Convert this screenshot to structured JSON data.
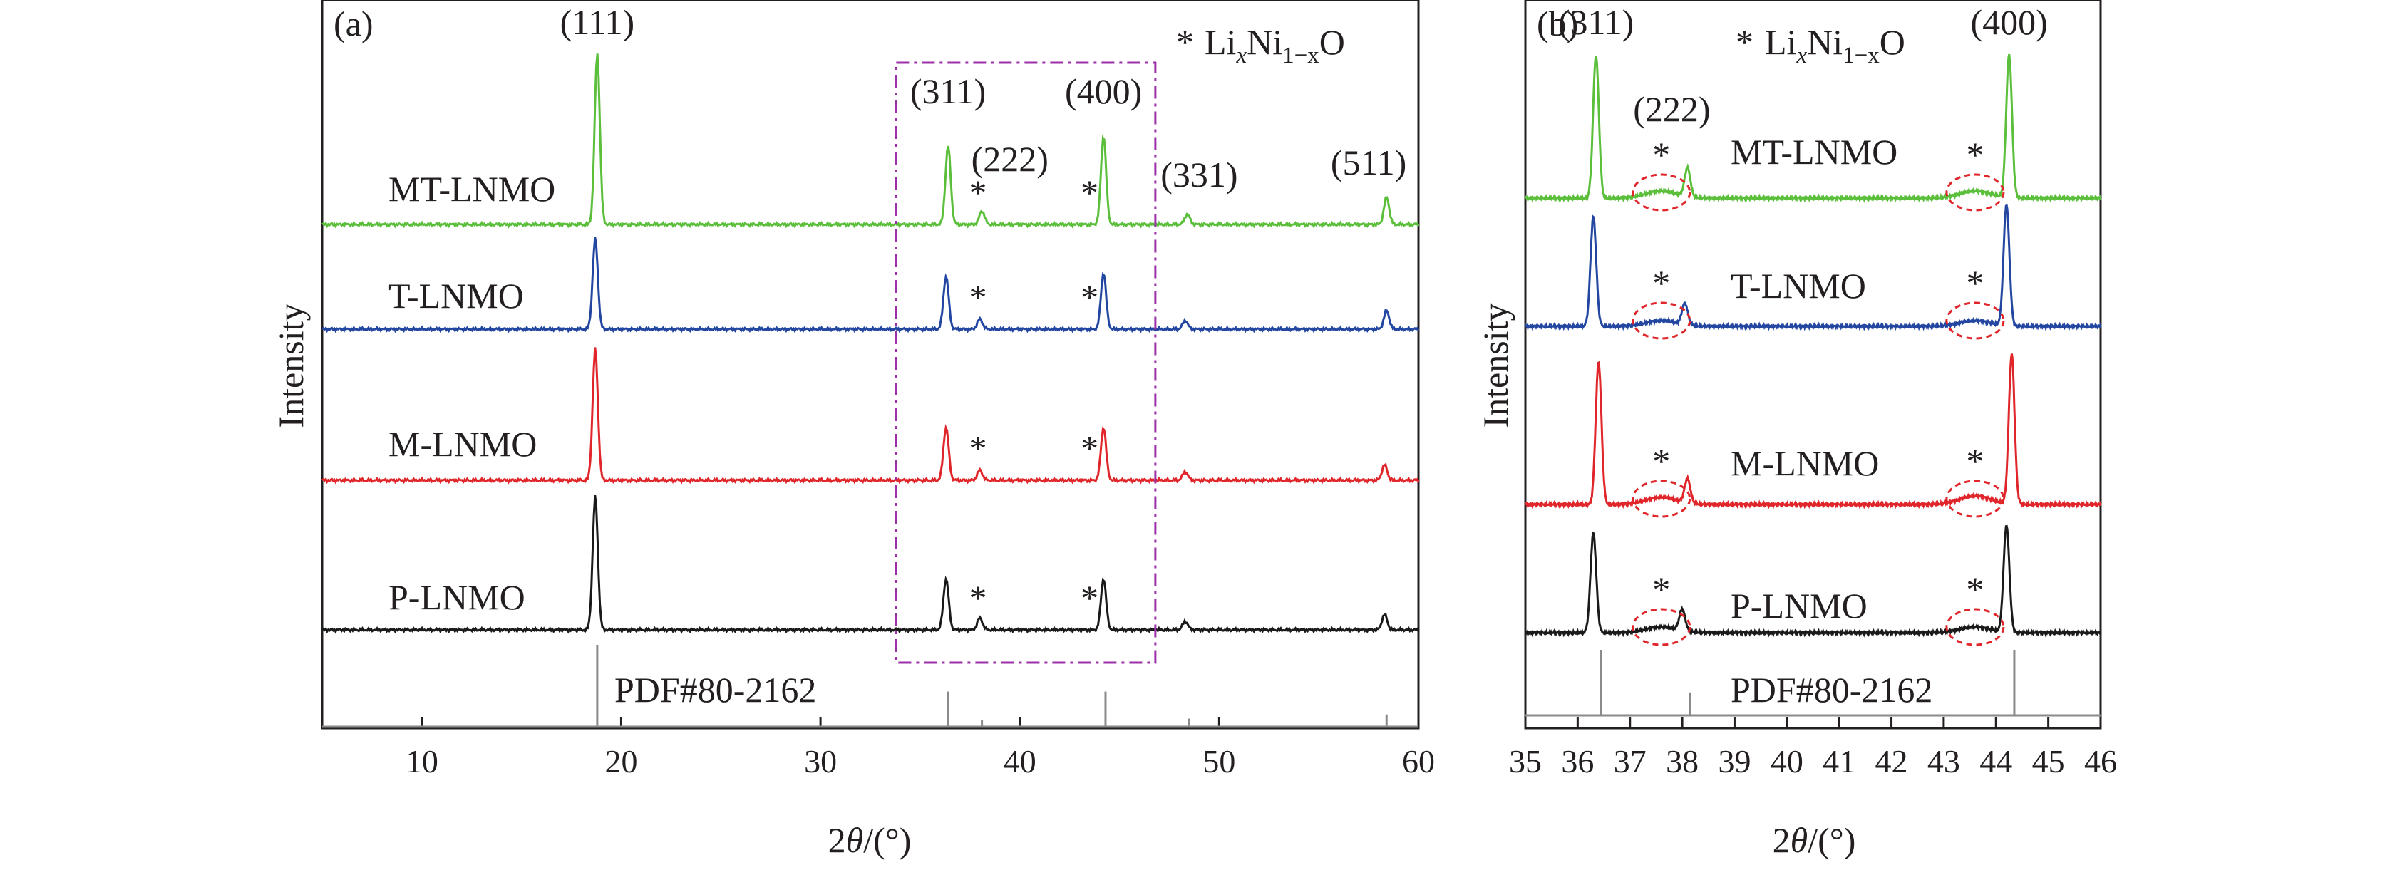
{
  "chart_data": [
    {
      "panel_id": "a",
      "type": "line",
      "panel_label": "(a)",
      "xlabel": "2θ/(°)",
      "ylabel": "Intensity",
      "xlim": [
        5,
        60
      ],
      "xticks": [
        10,
        20,
        30,
        40,
        50,
        60
      ],
      "legend": {
        "marker": "*",
        "text": "LixNi1−xO"
      },
      "highlight_box": {
        "x_range": [
          33.8,
          46.8
        ],
        "style": "dash-dot",
        "color": "#9b30a8"
      },
      "series": [
        {
          "name": "MT-LNMO",
          "color": "#5bbf3c",
          "peaks": [
            [
              18.8,
              1.0
            ],
            [
              36.4,
              0.46
            ],
            [
              38.1,
              0.08
            ],
            [
              44.2,
              0.52
            ],
            [
              48.4,
              0.06
            ],
            [
              58.4,
              0.16
            ]
          ]
        },
        {
          "name": "T-LNMO",
          "color": "#2346a1",
          "peaks": [
            [
              18.7,
              0.53
            ],
            [
              36.3,
              0.31
            ],
            [
              38.0,
              0.06
            ],
            [
              44.2,
              0.33
            ],
            [
              48.3,
              0.05
            ],
            [
              58.4,
              0.11
            ]
          ]
        },
        {
          "name": "M-LNMO",
          "color": "#e0262a",
          "peaks": [
            [
              18.7,
              0.77
            ],
            [
              36.3,
              0.31
            ],
            [
              38.0,
              0.06
            ],
            [
              44.2,
              0.31
            ],
            [
              48.3,
              0.05
            ],
            [
              58.3,
              0.09
            ]
          ]
        },
        {
          "name": "P-LNMO",
          "color": "#1a1a1a",
          "peaks": [
            [
              18.7,
              0.78
            ],
            [
              36.3,
              0.3
            ],
            [
              38.0,
              0.07
            ],
            [
              44.2,
              0.3
            ],
            [
              48.3,
              0.05
            ],
            [
              58.3,
              0.09
            ]
          ]
        }
      ],
      "reference": {
        "name": "PDF#80-2162",
        "lines": [
          [
            18.8,
            1.0
          ],
          [
            36.4,
            0.43
          ],
          [
            38.1,
            0.08
          ],
          [
            44.3,
            0.43
          ],
          [
            48.5,
            0.1
          ],
          [
            58.4,
            0.15
          ]
        ]
      },
      "annotations": [
        {
          "text": "(111)",
          "x": 18.8
        },
        {
          "text": "(311)",
          "x": 36.4
        },
        {
          "text": "(222)",
          "x": 39.5
        },
        {
          "text": "(400)",
          "x": 44.2
        },
        {
          "text": "(331)",
          "x": 49.0
        },
        {
          "text": "(511)",
          "x": 57.5
        }
      ],
      "stars": [
        {
          "series": "MT-LNMO",
          "x": 37.9
        },
        {
          "series": "MT-LNMO",
          "x": 43.5
        },
        {
          "series": "T-LNMO",
          "x": 37.9
        },
        {
          "series": "T-LNMO",
          "x": 43.5
        },
        {
          "series": "M-LNMO",
          "x": 37.9
        },
        {
          "series": "M-LNMO",
          "x": 43.5
        },
        {
          "series": "P-LNMO",
          "x": 37.9
        },
        {
          "series": "P-LNMO",
          "x": 43.5
        }
      ]
    },
    {
      "panel_id": "b",
      "type": "line",
      "panel_label": "(b)",
      "xlabel": "2θ/(°)",
      "ylabel": "Intensity",
      "xlim": [
        35,
        46
      ],
      "xticks": [
        35,
        36,
        37,
        38,
        39,
        40,
        41,
        42,
        43,
        44,
        45,
        46
      ],
      "legend": {
        "marker": "*",
        "text": "LixNi1−xO"
      },
      "series": [
        {
          "name": "MT-LNMO",
          "color": "#5bbf3c",
          "peaks": [
            [
              36.35,
              1.0
            ],
            [
              38.1,
              0.2
            ],
            [
              44.25,
              1.0
            ]
          ],
          "bumps": [
            [
              37.6,
              0.05
            ],
            [
              43.6,
              0.05
            ]
          ]
        },
        {
          "name": "T-LNMO",
          "color": "#2346a1",
          "peaks": [
            [
              36.3,
              0.77
            ],
            [
              38.05,
              0.15
            ],
            [
              44.2,
              0.85
            ]
          ],
          "bumps": [
            [
              37.6,
              0.04
            ],
            [
              43.6,
              0.04
            ]
          ]
        },
        {
          "name": "M-LNMO",
          "color": "#e0262a",
          "peaks": [
            [
              36.4,
              1.0
            ],
            [
              38.1,
              0.17
            ],
            [
              44.3,
              1.05
            ]
          ],
          "bumps": [
            [
              37.6,
              0.05
            ],
            [
              43.6,
              0.06
            ]
          ]
        },
        {
          "name": "P-LNMO",
          "color": "#1a1a1a",
          "peaks": [
            [
              36.3,
              0.7
            ],
            [
              38.0,
              0.15
            ],
            [
              44.2,
              0.75
            ]
          ],
          "bumps": [
            [
              37.6,
              0.04
            ],
            [
              43.6,
              0.04
            ]
          ]
        }
      ],
      "reference": {
        "name": "PDF#80-2162",
        "lines": [
          [
            36.45,
            1.0
          ],
          [
            38.15,
            0.35
          ],
          [
            44.35,
            1.0
          ]
        ]
      },
      "annotations": [
        {
          "text": "(311)",
          "x": 36.35
        },
        {
          "text": "(222)",
          "x": 37.8
        },
        {
          "text": "(400)",
          "x": 44.25
        }
      ],
      "stars": [
        {
          "series": "MT-LNMO",
          "x": 37.6
        },
        {
          "series": "MT-LNMO",
          "x": 43.6
        },
        {
          "series": "T-LNMO",
          "x": 37.6
        },
        {
          "series": "T-LNMO",
          "x": 43.6
        },
        {
          "series": "M-LNMO",
          "x": 37.6
        },
        {
          "series": "M-LNMO",
          "x": 43.6
        },
        {
          "series": "P-LNMO",
          "x": 37.6
        },
        {
          "series": "P-LNMO",
          "x": 43.6
        }
      ],
      "circles": [
        {
          "series": "MT-LNMO",
          "x": 37.6
        },
        {
          "series": "MT-LNMO",
          "x": 43.6
        },
        {
          "series": "T-LNMO",
          "x": 37.6
        },
        {
          "series": "T-LNMO",
          "x": 43.6
        },
        {
          "series": "M-LNMO",
          "x": 37.6
        },
        {
          "series": "M-LNMO",
          "x": 43.6
        },
        {
          "series": "P-LNMO",
          "x": 37.6
        },
        {
          "series": "P-LNMO",
          "x": 43.6
        }
      ]
    }
  ]
}
